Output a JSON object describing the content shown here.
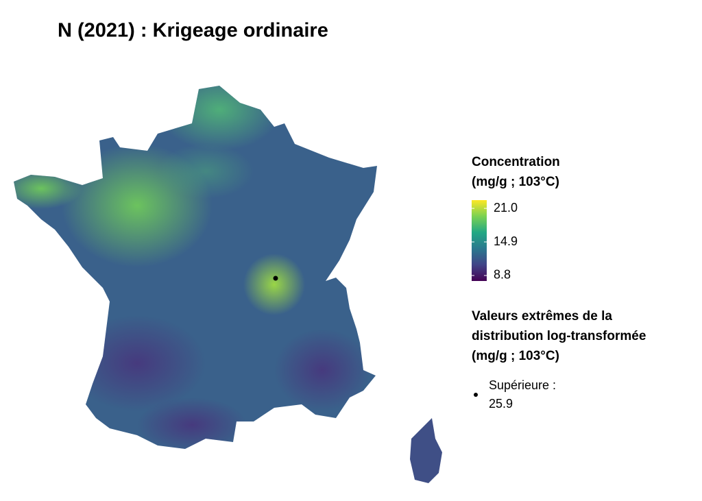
{
  "title": "N (2021) : Krigeage ordinaire",
  "legend_concentration": {
    "title": [
      "Concentration",
      "(mg/g ; 103°C)"
    ],
    "lim": [
      7.8,
      22.5
    ],
    "colors": [
      "#440154",
      "#414487",
      "#2a788e",
      "#22a884",
      "#7ad151",
      "#fde725"
    ],
    "ticks": [
      {
        "value": 21.0,
        "label": "21.0"
      },
      {
        "value": 14.9,
        "label": "14.9"
      },
      {
        "value": 8.8,
        "label": "8.8"
      }
    ]
  },
  "legend_extremes": {
    "title": [
      "Valeurs extrêmes de la",
      "distribution log-transformée",
      "(mg/g ; 103°C)"
    ],
    "items": [
      {
        "label": "Supérieure :",
        "value": 25.9
      }
    ]
  }
}
